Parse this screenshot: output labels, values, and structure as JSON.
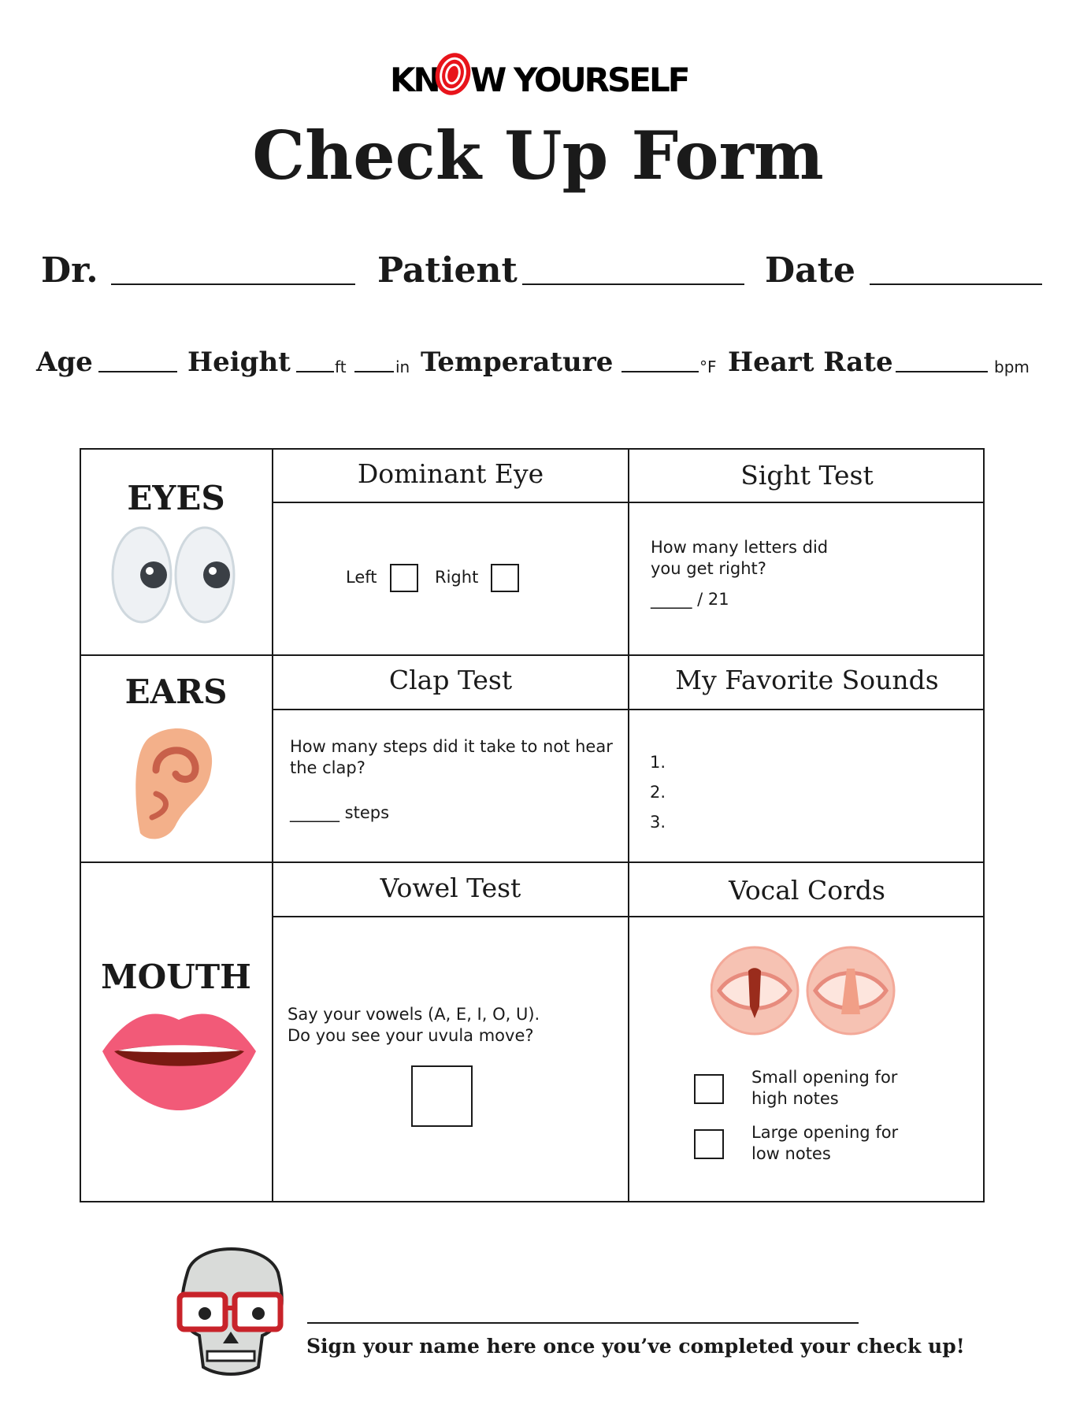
{
  "logo": {
    "text": "KNOW YOURSELF",
    "brand_color": "#e8141b"
  },
  "title": "Check Up Form",
  "info_row1": {
    "dr": "Dr.",
    "patient": "Patient",
    "date": "Date"
  },
  "info_row2": {
    "age": "Age",
    "height": "Height",
    "ft": "ft",
    "in": "in",
    "temperature": "Temperature",
    "deg": "°F",
    "heart_rate": "Heart Rate",
    "bpm": "bpm"
  },
  "eyes": {
    "label": "EYES",
    "dominant": {
      "title": "Dominant Eye",
      "left": "Left",
      "right": "Right"
    },
    "sight": {
      "title": "Sight Test",
      "question": "How many letters did you get right?",
      "score": "_____ / 21"
    }
  },
  "ears": {
    "label": "EARS",
    "clap": {
      "title": "Clap Test",
      "question": "How many steps did it take to not hear the clap?",
      "steps": "______ steps"
    },
    "sounds": {
      "title": "My Favorite Sounds",
      "items": [
        "1.",
        "2.",
        "3."
      ]
    }
  },
  "mouth": {
    "label": "MOUTH",
    "vowel": {
      "title": "Vowel Test",
      "question": "Say your vowels (A, E, I, O, U). Do you see your uvula move?"
    },
    "vocal": {
      "title": "Vocal Cords",
      "option1": "Small opening for high notes",
      "option2": "Large opening for low notes"
    }
  },
  "signature": {
    "prompt": "Sign your name here once you’ve completed your check up!"
  }
}
